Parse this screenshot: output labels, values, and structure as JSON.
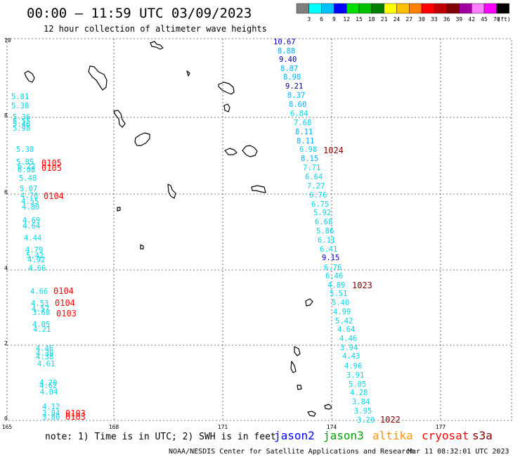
{
  "header": {
    "title": "00:00 – 11:59 UTC 03/09/2023",
    "subtitle": "12 hour collection of altimeter wave heights"
  },
  "colorbar": {
    "colors": [
      "#7f7f7f",
      "#00ffff",
      "#00bfff",
      "#0000ff",
      "#00e000",
      "#00c000",
      "#008000",
      "#ffff00",
      "#ffc000",
      "#ff8000",
      "#ff0000",
      "#c00000",
      "#800000",
      "#a000a0",
      "#ff80ff",
      "#ff00ff",
      "#000000"
    ],
    "labels": [
      "3",
      "6",
      "9",
      "12",
      "15",
      "18",
      "21",
      "24",
      "27",
      "30",
      "33",
      "36",
      "39",
      "42",
      "45",
      "70"
    ],
    "unit": "(ft)"
  },
  "axes": {
    "x_ticks": [
      "165",
      "168",
      "171",
      "174",
      "177"
    ],
    "y_ticks": [
      "10",
      "8",
      "6",
      "4",
      "2",
      "0"
    ]
  },
  "track_left": {
    "heights": [
      {
        "v": "5.81",
        "c": "#00d8e8"
      },
      {
        "v": "5.38",
        "c": "#00d8e8"
      },
      {
        "v": "5.36",
        "c": "#00d8e8"
      },
      {
        "v": "5.55",
        "c": "#00d8e8"
      },
      {
        "v": "5.46",
        "c": "#00d8e8"
      },
      {
        "v": "5.98",
        "c": "#00d8e8"
      },
      {
        "v": "5.38",
        "c": "#00d8e8"
      },
      {
        "v": "5.85",
        "c": "#00d8e8"
      },
      {
        "v": "6.22",
        "c": "#00d8e8"
      },
      {
        "v": "6.08",
        "c": "#00d8e8"
      },
      {
        "v": "5.48",
        "c": "#00d8e8"
      },
      {
        "v": "5.07",
        "c": "#00d8e8"
      },
      {
        "v": "4.70",
        "c": "#00d8e8"
      },
      {
        "v": "4.55",
        "c": "#00d8e8"
      },
      {
        "v": "4.80",
        "c": "#00d8e8"
      },
      {
        "v": "4.69",
        "c": "#00d8e8"
      },
      {
        "v": "4.64",
        "c": "#00d8e8"
      },
      {
        "v": "4.44",
        "c": "#00d8e8"
      },
      {
        "v": "4.79",
        "c": "#00d8e8"
      },
      {
        "v": "5.42",
        "c": "#00d8e8"
      },
      {
        "v": "4.92",
        "c": "#00d8e8"
      },
      {
        "v": "4.66",
        "c": "#00d8e8"
      },
      {
        "v": "4.66",
        "c": "#00d8e8"
      },
      {
        "v": "4.53",
        "c": "#00d8e8"
      },
      {
        "v": "4.57",
        "c": "#00d8e8"
      },
      {
        "v": "3.68",
        "c": "#00d8e8"
      },
      {
        "v": "4.05",
        "c": "#00d8e8"
      },
      {
        "v": "4.21",
        "c": "#00d8e8"
      },
      {
        "v": "4.46",
        "c": "#00d8e8"
      },
      {
        "v": "4.39",
        "c": "#00d8e8"
      },
      {
        "v": "4.38",
        "c": "#00d8e8"
      },
      {
        "v": "4.61",
        "c": "#00d8e8"
      },
      {
        "v": "4.70",
        "c": "#00d8e8"
      },
      {
        "v": "4.62",
        "c": "#00d8e8"
      },
      {
        "v": "4.04",
        "c": "#00d8e8"
      },
      {
        "v": "4.12",
        "c": "#00d8e8"
      },
      {
        "v": "3.94",
        "c": "#00d8e8"
      },
      {
        "v": "3.80",
        "c": "#00d8e8"
      }
    ],
    "times": [
      "0105",
      "0105",
      "0104",
      "0104",
      "0104",
      "0103",
      "0103",
      "0103"
    ]
  },
  "track_right": {
    "heights": [
      {
        "v": "10.67",
        "c": "#0000c8"
      },
      {
        "v": "8.88",
        "c": "#00b0ff"
      },
      {
        "v": "9.40",
        "c": "#0000a0"
      },
      {
        "v": "8.87",
        "c": "#00b0ff"
      },
      {
        "v": "8.98",
        "c": "#00b0ff"
      },
      {
        "v": "9.21",
        "c": "#000080"
      },
      {
        "v": "8.37",
        "c": "#00b0ff"
      },
      {
        "v": "8.60",
        "c": "#00b0ff"
      },
      {
        "v": "6.84",
        "c": "#00d8e8"
      },
      {
        "v": "7.68",
        "c": "#00d8e8"
      },
      {
        "v": "8.11",
        "c": "#00b0ff"
      },
      {
        "v": "8.11",
        "c": "#00b0ff"
      },
      {
        "v": "6.98",
        "c": "#00d8e8"
      },
      {
        "v": "8.15",
        "c": "#00b0ff"
      },
      {
        "v": "7.71",
        "c": "#00d8e8"
      },
      {
        "v": "6.64",
        "c": "#00d8e8"
      },
      {
        "v": "7.27",
        "c": "#00d8e8"
      },
      {
        "v": "6.76",
        "c": "#00d8e8"
      },
      {
        "v": "6.75",
        "c": "#00d8e8"
      },
      {
        "v": "5.92",
        "c": "#00d8e8"
      },
      {
        "v": "6.68",
        "c": "#00d8e8"
      },
      {
        "v": "5.86",
        "c": "#00d8e8"
      },
      {
        "v": "6.11",
        "c": "#00d8e8"
      },
      {
        "v": "6.41",
        "c": "#00d8e8"
      },
      {
        "v": "9.15",
        "c": "#0000c8"
      },
      {
        "v": "6.76",
        "c": "#00d8e8"
      },
      {
        "v": "6.46",
        "c": "#00d8e8"
      },
      {
        "v": "4.89",
        "c": "#00d8e8"
      },
      {
        "v": "5.51",
        "c": "#00d8e8"
      },
      {
        "v": "5.40",
        "c": "#00d8e8"
      },
      {
        "v": "4.99",
        "c": "#00d8e8"
      },
      {
        "v": "5.42",
        "c": "#00d8e8"
      },
      {
        "v": "4.64",
        "c": "#00d8e8"
      },
      {
        "v": "4.46",
        "c": "#00d8e8"
      },
      {
        "v": "3.94",
        "c": "#00d8e8"
      },
      {
        "v": "4.43",
        "c": "#00d8e8"
      },
      {
        "v": "4.96",
        "c": "#00d8e8"
      },
      {
        "v": "3.91",
        "c": "#00d8e8"
      },
      {
        "v": "5.05",
        "c": "#00d8e8"
      },
      {
        "v": "4.28",
        "c": "#00d8e8"
      },
      {
        "v": "3.84",
        "c": "#00d8e8"
      },
      {
        "v": "3.95",
        "c": "#00d8e8"
      },
      {
        "v": "3.29",
        "c": "#00d8e8"
      }
    ],
    "times": [
      "1024",
      "1023",
      "1022"
    ]
  },
  "footer": {
    "note": "note: 1) Time is in UTC; 2) SWH is in feet",
    "satellites": [
      {
        "name": "jason2",
        "color": "#0000ff"
      },
      {
        "name": "jason3",
        "color": "#00a000"
      },
      {
        "name": "altika",
        "color": "#ff9000"
      },
      {
        "name": "cryosat",
        "color": "#ff0000"
      },
      {
        "name": "s3a",
        "color": "#800000"
      }
    ],
    "credit": "NOAA/NESDIS Center for Satellite Applications and Research",
    "timestamp": "Mar 11 08:32:01 UTC 2023"
  }
}
